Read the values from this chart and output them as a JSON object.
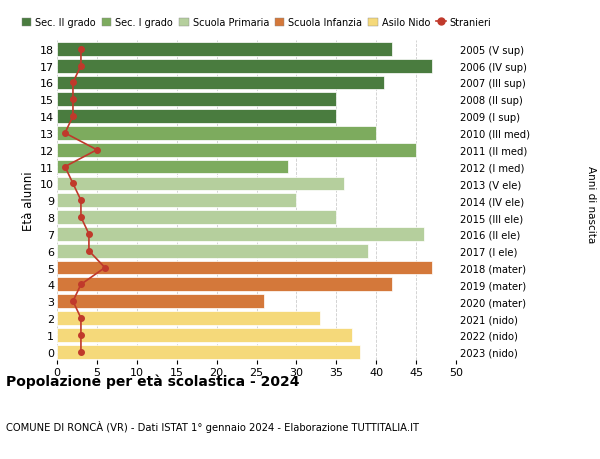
{
  "ages": [
    18,
    17,
    16,
    15,
    14,
    13,
    12,
    11,
    10,
    9,
    8,
    7,
    6,
    5,
    4,
    3,
    2,
    1,
    0
  ],
  "bar_values": [
    42,
    47,
    41,
    35,
    35,
    40,
    45,
    29,
    36,
    30,
    35,
    46,
    39,
    47,
    42,
    26,
    33,
    37,
    38
  ],
  "stranieri": [
    3,
    3,
    2,
    2,
    2,
    1,
    5,
    1,
    2,
    3,
    3,
    4,
    4,
    6,
    3,
    2,
    3,
    3,
    3
  ],
  "right_labels": [
    "2005 (V sup)",
    "2006 (IV sup)",
    "2007 (III sup)",
    "2008 (II sup)",
    "2009 (I sup)",
    "2010 (III med)",
    "2011 (II med)",
    "2012 (I med)",
    "2013 (V ele)",
    "2014 (IV ele)",
    "2015 (III ele)",
    "2016 (II ele)",
    "2017 (I ele)",
    "2018 (mater)",
    "2019 (mater)",
    "2020 (mater)",
    "2021 (nido)",
    "2022 (nido)",
    "2023 (nido)"
  ],
  "bar_colors": [
    "#4a7c3f",
    "#4a7c3f",
    "#4a7c3f",
    "#4a7c3f",
    "#4a7c3f",
    "#7dab5e",
    "#7dab5e",
    "#7dab5e",
    "#b5cf9d",
    "#b5cf9d",
    "#b5cf9d",
    "#b5cf9d",
    "#b5cf9d",
    "#d4783a",
    "#d4783a",
    "#d4783a",
    "#f5d97a",
    "#f5d97a",
    "#f5d97a"
  ],
  "legend_labels": [
    "Sec. II grado",
    "Sec. I grado",
    "Scuola Primaria",
    "Scuola Infanzia",
    "Asilo Nido",
    "Stranieri"
  ],
  "legend_colors": [
    "#4a7c3f",
    "#7dab5e",
    "#b5cf9d",
    "#d4783a",
    "#f5d97a",
    "#c0392b"
  ],
  "stranieri_color": "#c0392b",
  "title": "Popolazione per età scolastica - 2024",
  "subtitle": "COMUNE DI RONCÀ (VR) - Dati ISTAT 1° gennaio 2024 - Elaborazione TUTTITALIA.IT",
  "ylabel": "Età alunni",
  "ylabel_right": "Anni di nascita",
  "xlim": [
    0,
    50
  ],
  "xticks": [
    0,
    5,
    10,
    15,
    20,
    25,
    30,
    35,
    40,
    45,
    50
  ],
  "background_color": "#ffffff",
  "grid_color": "#cccccc",
  "bar_edge_color": "#ffffff",
  "bar_height": 0.82
}
